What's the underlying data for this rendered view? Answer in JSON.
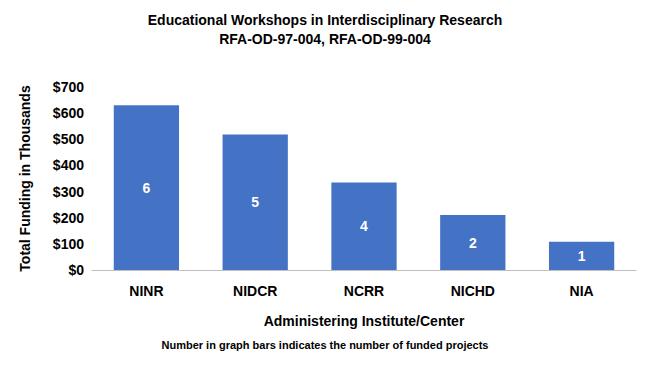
{
  "chart_data": {
    "type": "bar",
    "title": "Educational Workshops in Interdisciplinary Research",
    "subtitle": "RFA-OD-97-004, RFA-OD-99-004",
    "x_label": "Administering Institute/Center",
    "y_label": "Total Funding in Thousands",
    "annotation": "Number in graph bars indicates the number of funded projects",
    "categories": [
      "NINR",
      "NIDCR",
      "NCRR",
      "NICHD",
      "NIA"
    ],
    "values": [
      630,
      518,
      335,
      210,
      108
    ],
    "project_counts": [
      6,
      5,
      4,
      2,
      1
    ],
    "color": "#4472c4",
    "ylim": [
      0,
      700
    ],
    "yticks": [
      {
        "value": 0,
        "label": "$0"
      },
      {
        "value": 100,
        "label": "$100"
      },
      {
        "value": 200,
        "label": "$200"
      },
      {
        "value": 300,
        "label": "$300"
      },
      {
        "value": 400,
        "label": "$400"
      },
      {
        "value": 500,
        "label": "$500"
      },
      {
        "value": 600,
        "label": "$600"
      },
      {
        "value": 700,
        "label": "$700"
      }
    ],
    "grid": false
  }
}
